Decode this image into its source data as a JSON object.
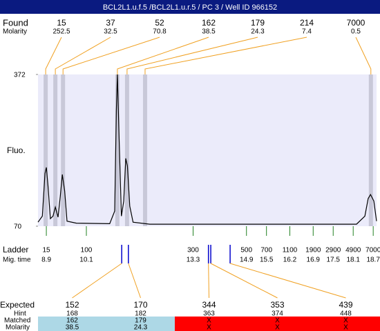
{
  "header": {
    "title": "BCL2L1.u.f.5 /BCL2L1.u.r.5 / PC 3 / Well ID 966152"
  },
  "found": {
    "label": "Found",
    "sublabel": "Molarity",
    "peaks": [
      {
        "size": 15,
        "molarity": 252.5,
        "time": 8.88
      },
      {
        "size": 37,
        "molarity": 32.5,
        "time": 9.17
      },
      {
        "size": 52,
        "molarity": 70.8,
        "time": 9.4
      },
      {
        "size": 162,
        "molarity": 38.5,
        "time": 11.03
      },
      {
        "size": 179,
        "molarity": 24.3,
        "time": 11.32
      },
      {
        "size": 214,
        "molarity": 7.4,
        "time": 11.86
      },
      {
        "size": 7000,
        "molarity": 0.5,
        "time": 18.63
      }
    ]
  },
  "chart_data": {
    "type": "line",
    "ylabel": "Fluo.",
    "ylim": [
      70,
      372
    ],
    "yticks": [
      70,
      372
    ],
    "xlim": [
      8.65,
      18.8
    ],
    "color": "#000000",
    "x": [
      8.65,
      8.78,
      8.86,
      8.9,
      8.95,
      9.02,
      9.1,
      9.17,
      9.25,
      9.32,
      9.38,
      9.45,
      9.52,
      9.8,
      10.8,
      10.95,
      11.0,
      11.03,
      11.08,
      11.15,
      11.22,
      11.28,
      11.33,
      11.4,
      11.5,
      12.0,
      18.2,
      18.45,
      18.55,
      18.62,
      18.72,
      18.8
    ],
    "values": [
      78,
      90,
      175,
      187,
      150,
      85,
      90,
      108,
      88,
      130,
      173,
      140,
      80,
      76,
      75,
      100,
      300,
      372,
      250,
      90,
      120,
      205,
      190,
      110,
      78,
      74,
      74,
      90,
      125,
      133,
      120,
      80
    ]
  },
  "ladder": {
    "label": "Ladder",
    "sublabel": "Mig. time",
    "sizes": [
      15,
      100,
      300,
      500,
      700,
      1100,
      1900,
      2900,
      4900,
      7000
    ],
    "times": [
      8.9,
      10.1,
      13.3,
      14.9,
      15.5,
      16.2,
      16.9,
      17.5,
      18.1,
      18.7
    ]
  },
  "expected": {
    "labels": [
      "Expected",
      "Hint",
      "Matched",
      "Molarity"
    ],
    "fragments": [
      {
        "expected": 152,
        "hint": 168,
        "matched": 162,
        "molarity": 38.5,
        "time": 11.16
      },
      {
        "expected": 170,
        "hint": 182,
        "matched": 179,
        "molarity": 24.3,
        "time": 11.36
      },
      {
        "expected": 344,
        "hint": 363,
        "matched": "X",
        "molarity": "X",
        "time": 13.76
      },
      {
        "expected": 353,
        "hint": 374,
        "matched": "X",
        "molarity": "X",
        "time": 13.83
      },
      {
        "expected": 439,
        "hint": 448,
        "matched": "X",
        "molarity": "X",
        "time": 14.41
      }
    ]
  }
}
